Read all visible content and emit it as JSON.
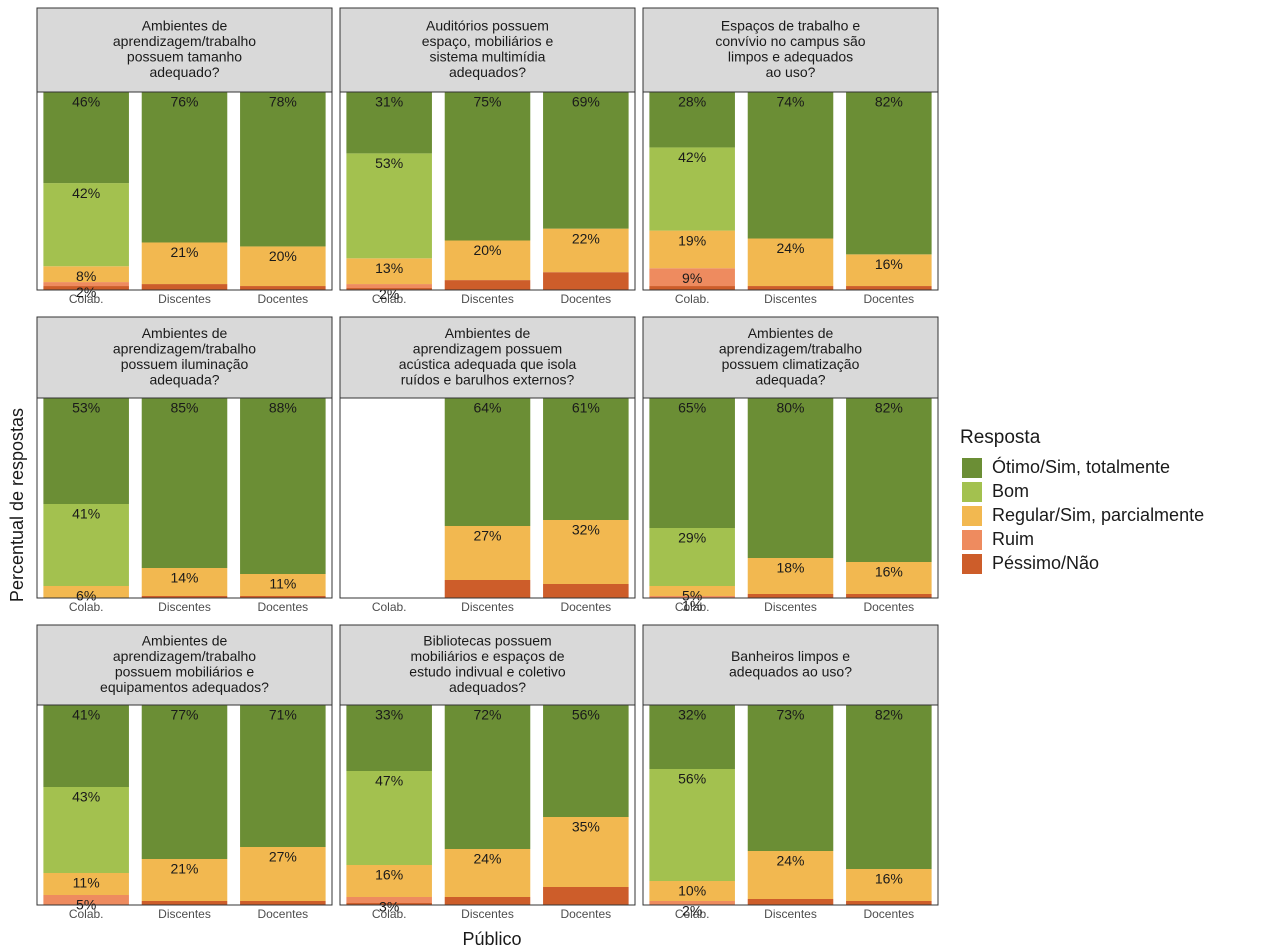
{
  "y_label": "Percentual de respostas",
  "x_label": "Público",
  "legend_title": "Resposta",
  "chart_data": [
    {
      "type": "bar",
      "title": [
        "Ambientes de",
        "aprendizagem/trabalho",
        "possuem tamanho",
        "adequado?"
      ],
      "categories": [
        "Colab.",
        "Discentes",
        "Docentes"
      ],
      "ylim": [
        0,
        100
      ],
      "series": [
        {
          "name": "Ótimo/Sim, totalmente",
          "color": "#6b8e35",
          "values": [
            46,
            76,
            78
          ],
          "value_labels": [
            "46%",
            "76%",
            "78%"
          ]
        },
        {
          "name": "Bom",
          "color": "#a3c14f",
          "values": [
            42,
            0,
            0
          ],
          "value_labels": [
            "42%",
            null,
            null
          ]
        },
        {
          "name": "Regular/Sim, parcialmente",
          "color": "#f2b850",
          "values": [
            8,
            21,
            20
          ],
          "value_labels": [
            "8%",
            "21%",
            "20%"
          ]
        },
        {
          "name": "Ruim",
          "color": "#ee8b5f",
          "values": [
            2,
            0,
            0
          ],
          "value_labels": [
            "2%",
            null,
            null
          ]
        },
        {
          "name": "Péssimo/Não",
          "color": "#cd5d2a",
          "values": [
            2,
            3,
            2
          ],
          "value_labels": [
            null,
            null,
            null
          ]
        }
      ]
    },
    {
      "type": "bar",
      "title": [
        "Auditórios possuem",
        "espaço, mobiliários e",
        "sistema multimídia",
        "adequados?"
      ],
      "categories": [
        "Colab.",
        "Discentes",
        "Docentes"
      ],
      "ylim": [
        0,
        100
      ],
      "series": [
        {
          "name": "Ótimo/Sim, totalmente",
          "color": "#6b8e35",
          "values": [
            31,
            75,
            69
          ],
          "value_labels": [
            "31%",
            "75%",
            "69%"
          ]
        },
        {
          "name": "Bom",
          "color": "#a3c14f",
          "values": [
            53,
            0,
            0
          ],
          "value_labels": [
            "53%",
            null,
            null
          ]
        },
        {
          "name": "Regular/Sim, parcialmente",
          "color": "#f2b850",
          "values": [
            13,
            20,
            22
          ],
          "value_labels": [
            "13%",
            "20%",
            "22%"
          ]
        },
        {
          "name": "Ruim",
          "color": "#ee8b5f",
          "values": [
            2,
            0,
            0
          ],
          "value_labels": [
            "2%",
            null,
            null
          ]
        },
        {
          "name": "Péssimo/Não",
          "color": "#cd5d2a",
          "values": [
            1,
            5,
            9
          ],
          "value_labels": [
            null,
            null,
            null
          ]
        }
      ]
    },
    {
      "type": "bar",
      "title": [
        "Espaços de trabalho e",
        "convívio no campus são",
        "limpos e adequados",
        "ao uso?"
      ],
      "categories": [
        "Colab.",
        "Discentes",
        "Docentes"
      ],
      "ylim": [
        0,
        100
      ],
      "series": [
        {
          "name": "Ótimo/Sim, totalmente",
          "color": "#6b8e35",
          "values": [
            28,
            74,
            82
          ],
          "value_labels": [
            "28%",
            "74%",
            "82%"
          ]
        },
        {
          "name": "Bom",
          "color": "#a3c14f",
          "values": [
            42,
            0,
            0
          ],
          "value_labels": [
            "42%",
            null,
            null
          ]
        },
        {
          "name": "Regular/Sim, parcialmente",
          "color": "#f2b850",
          "values": [
            19,
            24,
            16
          ],
          "value_labels": [
            "19%",
            "24%",
            "16%"
          ]
        },
        {
          "name": "Ruim",
          "color": "#ee8b5f",
          "values": [
            9,
            0,
            0
          ],
          "value_labels": [
            "9%",
            null,
            null
          ]
        },
        {
          "name": "Péssimo/Não",
          "color": "#cd5d2a",
          "values": [
            2,
            2,
            2
          ],
          "value_labels": [
            null,
            null,
            null
          ]
        }
      ]
    },
    {
      "type": "bar",
      "title": [
        "Ambientes de",
        "aprendizagem/trabalho",
        "possuem iluminação",
        "adequada?"
      ],
      "categories": [
        "Colab.",
        "Discentes",
        "Docentes"
      ],
      "ylim": [
        0,
        100
      ],
      "series": [
        {
          "name": "Ótimo/Sim, totalmente",
          "color": "#6b8e35",
          "values": [
            53,
            85,
            88
          ],
          "value_labels": [
            "53%",
            "85%",
            "88%"
          ]
        },
        {
          "name": "Bom",
          "color": "#a3c14f",
          "values": [
            41,
            0,
            0
          ],
          "value_labels": [
            "41%",
            null,
            null
          ]
        },
        {
          "name": "Regular/Sim, parcialmente",
          "color": "#f2b850",
          "values": [
            6,
            14,
            11
          ],
          "value_labels": [
            "6%",
            "14%",
            "11%"
          ]
        },
        {
          "name": "Ruim",
          "color": "#ee8b5f",
          "values": [
            0,
            0,
            0
          ],
          "value_labels": [
            null,
            null,
            null
          ]
        },
        {
          "name": "Péssimo/Não",
          "color": "#cd5d2a",
          "values": [
            0,
            1,
            1
          ],
          "value_labels": [
            null,
            null,
            null
          ]
        }
      ]
    },
    {
      "type": "bar",
      "title": [
        "Ambientes de",
        "aprendizagem possuem",
        "acústica adequada que isola",
        "ruídos e barulhos externos?"
      ],
      "categories": [
        "Colab.",
        "Discentes",
        "Docentes"
      ],
      "ylim": [
        0,
        100
      ],
      "series": [
        {
          "name": "Ótimo/Sim, totalmente",
          "color": "#6b8e35",
          "values": [
            null,
            64,
            61
          ],
          "value_labels": [
            null,
            "64%",
            "61%"
          ]
        },
        {
          "name": "Bom",
          "color": "#a3c14f",
          "values": [
            null,
            0,
            0
          ],
          "value_labels": [
            null,
            null,
            null
          ]
        },
        {
          "name": "Regular/Sim, parcialmente",
          "color": "#f2b850",
          "values": [
            null,
            27,
            32
          ],
          "value_labels": [
            null,
            "27%",
            "32%"
          ]
        },
        {
          "name": "Ruim",
          "color": "#ee8b5f",
          "values": [
            null,
            0,
            0
          ],
          "value_labels": [
            null,
            null,
            null
          ]
        },
        {
          "name": "Péssimo/Não",
          "color": "#cd5d2a",
          "values": [
            null,
            9,
            7
          ],
          "value_labels": [
            null,
            null,
            null
          ]
        }
      ]
    },
    {
      "type": "bar",
      "title": [
        "Ambientes de",
        "aprendizagem/trabalho",
        "possuem climatização",
        "adequada?"
      ],
      "categories": [
        "Colab.",
        "Discentes",
        "Docentes"
      ],
      "ylim": [
        0,
        100
      ],
      "series": [
        {
          "name": "Ótimo/Sim, totalmente",
          "color": "#6b8e35",
          "values": [
            65,
            80,
            82
          ],
          "value_labels": [
            "65%",
            "80%",
            "82%"
          ]
        },
        {
          "name": "Bom",
          "color": "#a3c14f",
          "values": [
            29,
            0,
            0
          ],
          "value_labels": [
            "29%",
            null,
            null
          ]
        },
        {
          "name": "Regular/Sim, parcialmente",
          "color": "#f2b850",
          "values": [
            5,
            18,
            16
          ],
          "value_labels": [
            "5%",
            "18%",
            "16%"
          ]
        },
        {
          "name": "Ruim",
          "color": "#ee8b5f",
          "values": [
            1,
            0,
            0
          ],
          "value_labels": [
            "1%",
            null,
            null
          ]
        },
        {
          "name": "Péssimo/Não",
          "color": "#cd5d2a",
          "values": [
            0,
            2,
            2
          ],
          "value_labels": [
            null,
            null,
            null
          ]
        }
      ]
    },
    {
      "type": "bar",
      "title": [
        "Ambientes de",
        "aprendizagem/trabalho",
        "possuem mobiliários e",
        "equipamentos adequados?"
      ],
      "categories": [
        "Colab.",
        "Discentes",
        "Docentes"
      ],
      "ylim": [
        0,
        100
      ],
      "series": [
        {
          "name": "Ótimo/Sim, totalmente",
          "color": "#6b8e35",
          "values": [
            41,
            77,
            71
          ],
          "value_labels": [
            "41%",
            "77%",
            "71%"
          ]
        },
        {
          "name": "Bom",
          "color": "#a3c14f",
          "values": [
            43,
            0,
            0
          ],
          "value_labels": [
            "43%",
            null,
            null
          ]
        },
        {
          "name": "Regular/Sim, parcialmente",
          "color": "#f2b850",
          "values": [
            11,
            21,
            27
          ],
          "value_labels": [
            "11%",
            "21%",
            "27%"
          ]
        },
        {
          "name": "Ruim",
          "color": "#ee8b5f",
          "values": [
            5,
            0,
            0
          ],
          "value_labels": [
            "5%",
            null,
            null
          ]
        },
        {
          "name": "Péssimo/Não",
          "color": "#cd5d2a",
          "values": [
            0,
            2,
            2
          ],
          "value_labels": [
            null,
            null,
            null
          ]
        }
      ]
    },
    {
      "type": "bar",
      "title": [
        "Bibliotecas possuem",
        "mobiliários e espaços de",
        "estudo indivual e coletivo",
        "adequados?"
      ],
      "categories": [
        "Colab.",
        "Discentes",
        "Docentes"
      ],
      "ylim": [
        0,
        100
      ],
      "series": [
        {
          "name": "Ótimo/Sim, totalmente",
          "color": "#6b8e35",
          "values": [
            33,
            72,
            56
          ],
          "value_labels": [
            "33%",
            "72%",
            "56%"
          ]
        },
        {
          "name": "Bom",
          "color": "#a3c14f",
          "values": [
            47,
            0,
            0
          ],
          "value_labels": [
            "47%",
            null,
            null
          ]
        },
        {
          "name": "Regular/Sim, parcialmente",
          "color": "#f2b850",
          "values": [
            16,
            24,
            35
          ],
          "value_labels": [
            "16%",
            "24%",
            "35%"
          ]
        },
        {
          "name": "Ruim",
          "color": "#ee8b5f",
          "values": [
            3,
            0,
            0
          ],
          "value_labels": [
            "3%",
            null,
            null
          ]
        },
        {
          "name": "Péssimo/Não",
          "color": "#cd5d2a",
          "values": [
            1,
            4,
            9
          ],
          "value_labels": [
            null,
            null,
            null
          ]
        }
      ]
    },
    {
      "type": "bar",
      "title": [
        "Banheiros limpos e",
        "adequados ao uso?"
      ],
      "categories": [
        "Colab.",
        "Discentes",
        "Docentes"
      ],
      "ylim": [
        0,
        100
      ],
      "series": [
        {
          "name": "Ótimo/Sim, totalmente",
          "color": "#6b8e35",
          "values": [
            32,
            73,
            82
          ],
          "value_labels": [
            "32%",
            "73%",
            "82%"
          ]
        },
        {
          "name": "Bom",
          "color": "#a3c14f",
          "values": [
            56,
            0,
            0
          ],
          "value_labels": [
            "56%",
            null,
            null
          ]
        },
        {
          "name": "Regular/Sim, parcialmente",
          "color": "#f2b850",
          "values": [
            10,
            24,
            16
          ],
          "value_labels": [
            "10%",
            "24%",
            "16%"
          ]
        },
        {
          "name": "Ruim",
          "color": "#ee8b5f",
          "values": [
            2,
            0,
            0
          ],
          "value_labels": [
            "2%",
            null,
            null
          ]
        },
        {
          "name": "Péssimo/Não",
          "color": "#cd5d2a",
          "values": [
            0,
            3,
            2
          ],
          "value_labels": [
            null,
            null,
            null
          ]
        }
      ]
    }
  ]
}
